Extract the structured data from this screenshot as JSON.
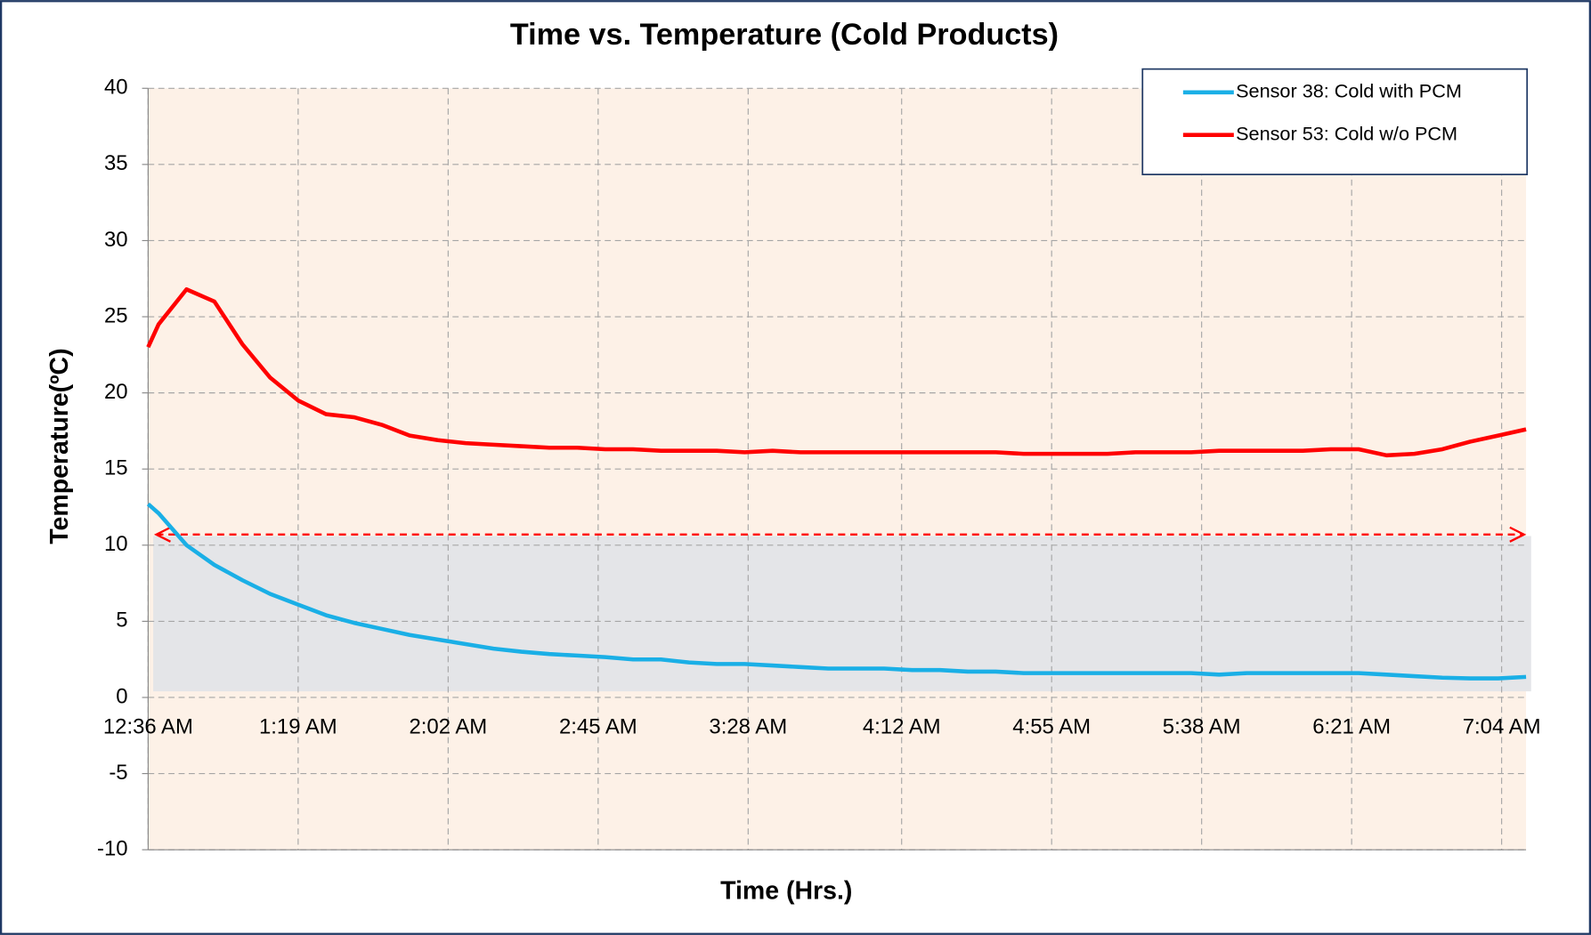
{
  "chart_data": {
    "type": "line",
    "title": "Time vs. Temperature (Cold Products)",
    "x_label": "Time (Hrs.)",
    "y_label": "Temperature(ºC)",
    "x": [
      "12:36 AM",
      "12:39 AM",
      "12:47 AM",
      "12:55 AM",
      "1:03 AM",
      "1:11 AM",
      "1:19 AM",
      "1:27 AM",
      "1:35 AM",
      "1:43 AM",
      "1:51 AM",
      "1:59 AM",
      "2:07 AM",
      "2:15 AM",
      "2:23 AM",
      "2:31 AM",
      "2:39 AM",
      "2:47 AM",
      "2:55 AM",
      "3:03 AM",
      "3:11 AM",
      "3:19 AM",
      "3:27 AM",
      "3:35 AM",
      "3:43 AM",
      "3:51 AM",
      "3:59 AM",
      "4:07 AM",
      "4:15 AM",
      "4:23 AM",
      "4:31 AM",
      "4:39 AM",
      "4:47 AM",
      "4:55 AM",
      "5:03 AM",
      "5:11 AM",
      "5:19 AM",
      "5:27 AM",
      "5:35 AM",
      "5:43 AM",
      "5:51 AM",
      "5:59 AM",
      "6:07 AM",
      "6:15 AM",
      "6:23 AM",
      "6:31 AM",
      "6:39 AM",
      "6:47 AM",
      "6:55 AM",
      "7:03 AM",
      "7:11 AM"
    ],
    "series": [
      {
        "name": "Sensor 38: Cold with PCM",
        "color": "#1aafe6",
        "values": [
          12.7,
          12.1,
          10.0,
          8.7,
          7.7,
          6.8,
          6.1,
          5.4,
          4.9,
          4.5,
          4.1,
          3.8,
          3.5,
          3.2,
          3.0,
          2.85,
          2.75,
          2.65,
          2.5,
          2.5,
          2.3,
          2.2,
          2.2,
          2.1,
          2.0,
          1.9,
          1.9,
          1.9,
          1.8,
          1.8,
          1.7,
          1.7,
          1.6,
          1.6,
          1.6,
          1.6,
          1.6,
          1.6,
          1.6,
          1.5,
          1.6,
          1.6,
          1.6,
          1.6,
          1.6,
          1.5,
          1.4,
          1.3,
          1.25,
          1.25,
          1.35
        ]
      },
      {
        "name": "Sensor 53: Cold w/o PCM",
        "color": "#ff0000",
        "values": [
          23.0,
          24.5,
          26.8,
          26.0,
          23.2,
          21.0,
          19.5,
          18.6,
          18.4,
          17.9,
          17.2,
          16.9,
          16.7,
          16.6,
          16.5,
          16.4,
          16.4,
          16.3,
          16.3,
          16.2,
          16.2,
          16.2,
          16.1,
          16.2,
          16.1,
          16.1,
          16.1,
          16.1,
          16.1,
          16.1,
          16.1,
          16.1,
          16.0,
          16.0,
          16.0,
          16.0,
          16.1,
          16.1,
          16.1,
          16.2,
          16.2,
          16.2,
          16.2,
          16.3,
          16.3,
          15.9,
          16.0,
          16.3,
          16.8,
          17.2,
          17.6
        ]
      }
    ],
    "xlim": [
      "12:36 AM",
      "7:11 AM"
    ],
    "xticks": [
      "12:36 AM",
      "1:19 AM",
      "2:02 AM",
      "2:45 AM",
      "3:28 AM",
      "4:12 AM",
      "4:55 AM",
      "5:38 AM",
      "6:21 AM",
      "7:04 AM"
    ],
    "ylim": [
      -10,
      40
    ],
    "yticks": [
      -10,
      -5,
      0,
      5,
      10,
      15,
      20,
      25,
      30,
      35,
      40
    ],
    "grid": true,
    "legend": "top-right",
    "range_band": [
      0.4,
      10.6
    ],
    "limit_arrow": 10.7
  }
}
